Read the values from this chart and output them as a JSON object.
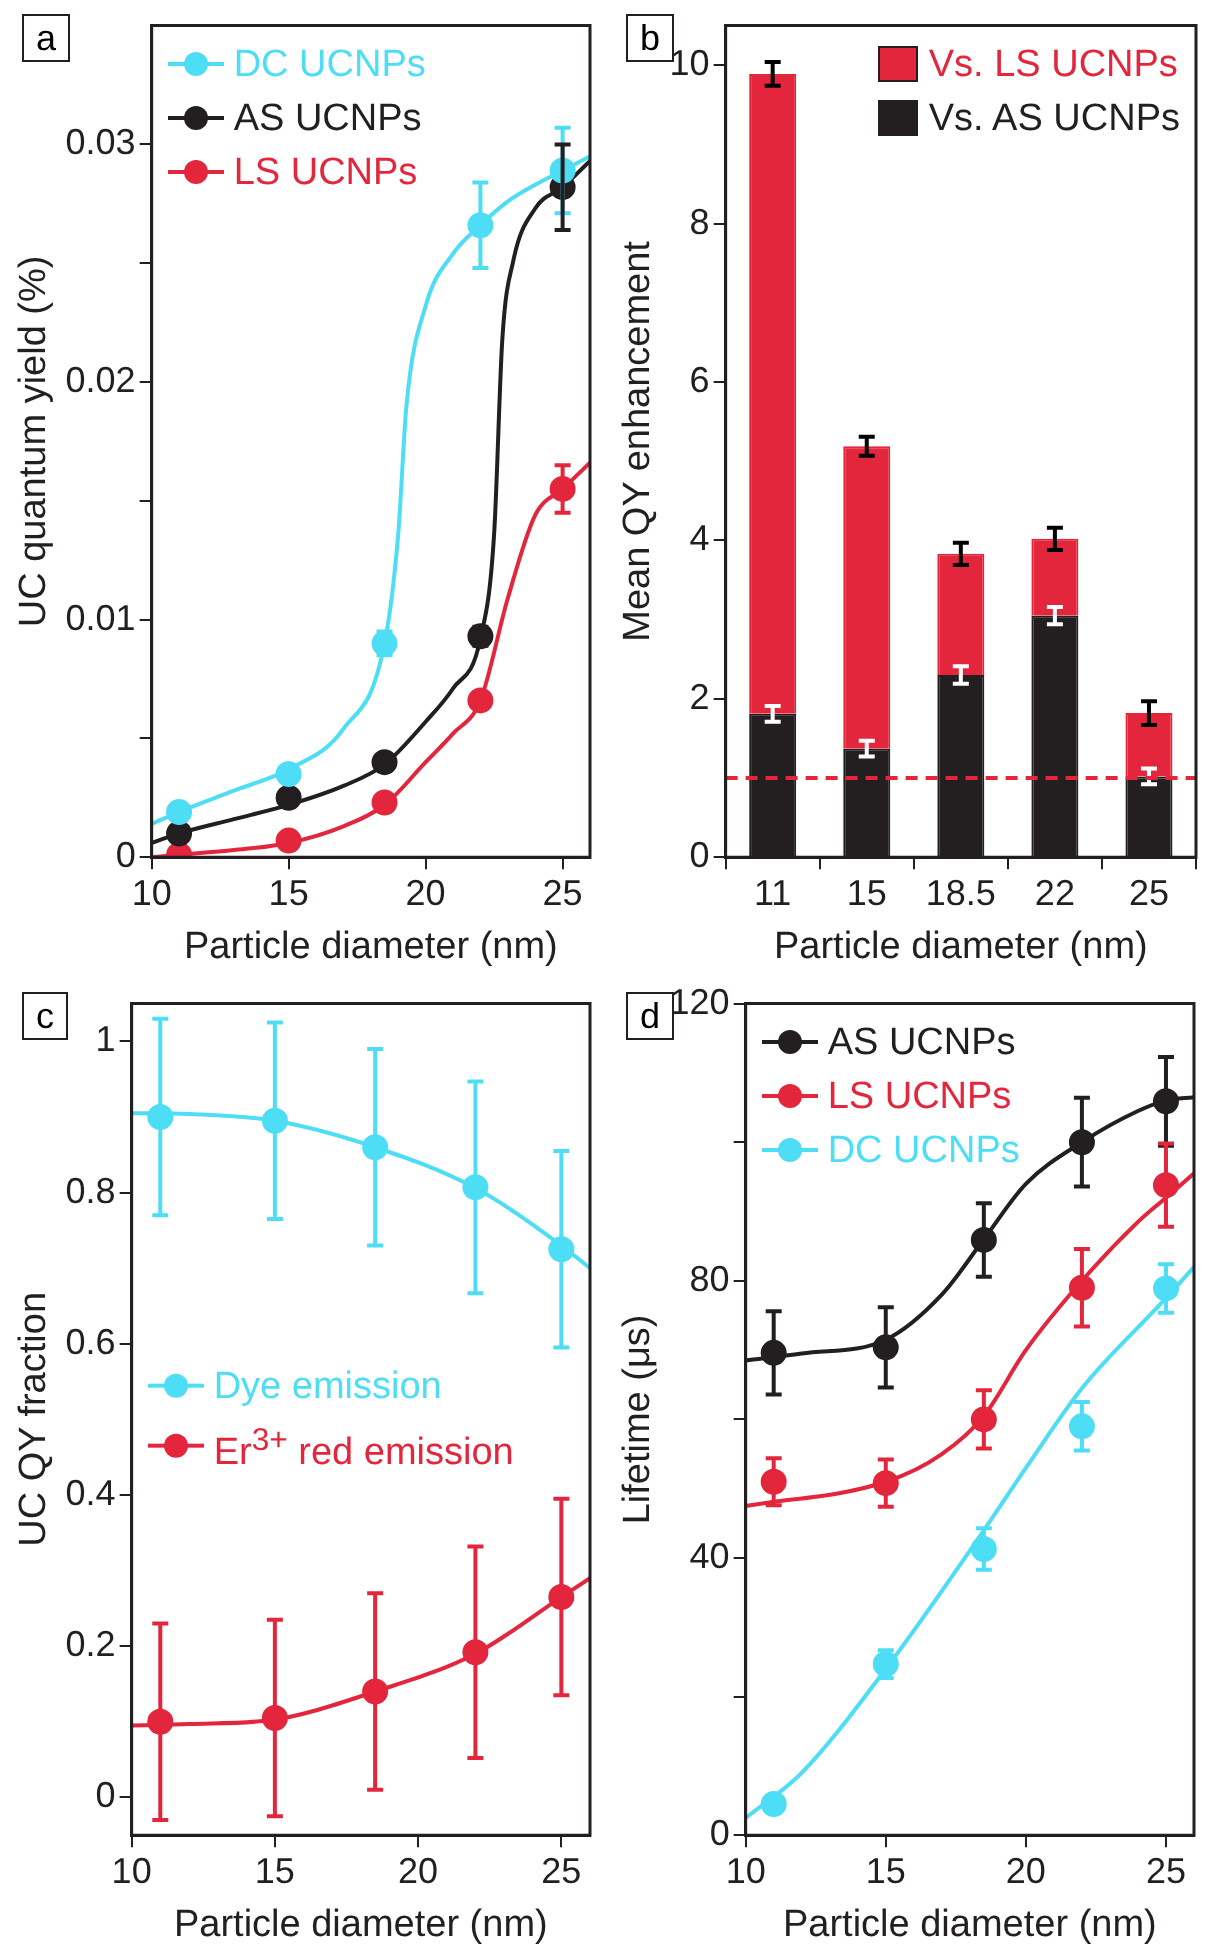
{
  "chart_data": [
    {
      "type": "scatter",
      "xlabel": "Particle diameter (nm)",
      "ylabel": "UC quantum yield (%)",
      "xlim": [
        10,
        26
      ],
      "xticks": [
        10,
        15,
        20,
        25
      ],
      "ylim": [
        0,
        0.035
      ],
      "yticks": [
        0,
        {
          "value": 0.005,
          "label": null
        },
        0.01,
        {
          "value": 0.015,
          "label": null
        },
        0.02,
        {
          "value": 0.025,
          "label": null
        },
        0.03
      ],
      "grid": false,
      "legend": "top left",
      "marker": "circle",
      "annotations": [
        "a"
      ],
      "series": [
        {
          "name": "DC UCNPs",
          "color": "#4dddf5",
          "x": [
            11,
            15,
            18.5,
            22,
            25
          ],
          "values": [
            0.0019,
            0.0035,
            0.009,
            0.0266,
            0.0289
          ],
          "errors": [
            null,
            null,
            0.0005,
            0.0018,
            0.0018
          ]
        },
        {
          "name": "AS UCNPs",
          "color": "#231f20",
          "x": [
            11,
            15,
            18.5,
            22,
            25
          ],
          "values": [
            0.001,
            0.0025,
            0.004,
            0.0093,
            0.0282
          ],
          "errors": [
            null,
            null,
            null,
            0.0004,
            0.0018
          ]
        },
        {
          "name": "LS UCNPs",
          "color": "#e3263c",
          "x": [
            11,
            15,
            18.5,
            22,
            25
          ],
          "values": [
            0.0001,
            0.0007,
            0.0023,
            0.0066,
            0.0155
          ],
          "errors": [
            null,
            null,
            null,
            null,
            0.001
          ]
        },
        {
          "type": "line",
          "marker": "none",
          "line_style": "solid",
          "color": "#4dddf5",
          "x": [
            10,
            11,
            13,
            15,
            17,
            18.5,
            19,
            19.3,
            20,
            21,
            22,
            23,
            24,
            25,
            26
          ],
          "values": [
            0.0014,
            0.0019,
            0.0028,
            0.0037,
            0.0054,
            0.009,
            0.0136,
            0.019,
            0.0232,
            0.0254,
            0.0266,
            0.0276,
            0.0283,
            0.0289,
            0.0295
          ]
        },
        {
          "type": "line",
          "marker": "none",
          "line_style": "solid",
          "color": "#231f20",
          "x": [
            10,
            11,
            13,
            15,
            17,
            18.5,
            20,
            21,
            22,
            22.5,
            22.8,
            23.2,
            24,
            25,
            26
          ],
          "values": [
            0.0006,
            0.001,
            0.0016,
            0.0022,
            0.003,
            0.0039,
            0.0057,
            0.0071,
            0.0092,
            0.0136,
            0.0218,
            0.0251,
            0.0273,
            0.0282,
            0.0293
          ]
        },
        {
          "type": "line",
          "marker": "none",
          "line_style": "solid",
          "color": "#e3263c",
          "x": [
            10,
            11,
            13,
            15,
            17,
            18.5,
            20,
            21,
            22,
            23,
            24,
            25,
            26
          ],
          "values": [
            0.0,
            0.0001,
            0.0003,
            0.0006,
            0.0013,
            0.0022,
            0.004,
            0.0052,
            0.0066,
            0.0109,
            0.0144,
            0.0155,
            0.0166
          ]
        }
      ]
    },
    {
      "type": "bar",
      "stacked": true,
      "xlabel": "Particle diameter (nm)",
      "ylabel": "Mean QY enhancement",
      "categories": [
        "11",
        "15",
        "18.5",
        "22",
        "25"
      ],
      "ylim": [
        0,
        10.5
      ],
      "yticks": [
        0,
        2,
        4,
        6,
        8,
        10
      ],
      "grid": false,
      "legend": "top right",
      "annotations": [
        "b"
      ],
      "ref_lines": [
        {
          "axis": "y",
          "value": 1,
          "color": "#e3263c",
          "line_style": "dashed"
        }
      ],
      "series": [
        {
          "name": "Vs. AS UCNPs",
          "color": "#231f20",
          "values": [
            1.81,
            1.37,
            2.3,
            3.05,
            1.02
          ],
          "errors": [
            0.1,
            0.1,
            0.11,
            0.11,
            0.1
          ]
        },
        {
          "name": "Vs. LS UCNPs",
          "color": "#e3263c",
          "values": [
            8.08,
            3.82,
            1.53,
            0.97,
            0.8
          ],
          "errors": [
            0.15,
            0.12,
            0.14,
            0.14,
            0.15
          ]
        }
      ]
    },
    {
      "type": "scatter",
      "xlabel": "Particle diameter (nm)",
      "ylabel": "UC QY fraction",
      "xlim": [
        10,
        26
      ],
      "xticks": [
        10,
        15,
        20,
        25
      ],
      "ylim": [
        -0.05,
        1.05
      ],
      "yticks": [
        0,
        0.2,
        0.4,
        0.6,
        0.8,
        1
      ],
      "grid": false,
      "legend": "left",
      "marker": "circle",
      "annotations": [
        "c"
      ],
      "series": [
        {
          "name": "Dye emission",
          "color": "#4dddf5",
          "x": [
            11,
            15,
            18.5,
            22,
            25
          ],
          "values": [
            0.9,
            0.895,
            0.86,
            0.807,
            0.725
          ],
          "errors": [
            0.13,
            0.13,
            0.13,
            0.14,
            0.13
          ]
        },
        {
          "name": "Er$^{3+}$ red emission",
          "color": "#e3263c",
          "x": [
            11,
            15,
            18.5,
            22,
            25
          ],
          "values": [
            0.1,
            0.105,
            0.14,
            0.192,
            0.265
          ],
          "errors": [
            0.13,
            0.13,
            0.13,
            0.14,
            0.13
          ]
        },
        {
          "type": "line",
          "marker": "none",
          "line_style": "solid",
          "color": "#4dddf5",
          "x": [
            10,
            12,
            15,
            18.5,
            22,
            25,
            26
          ],
          "values": [
            0.905,
            0.904,
            0.895,
            0.86,
            0.806,
            0.73,
            0.7
          ]
        },
        {
          "type": "line",
          "marker": "none",
          "line_style": "solid",
          "color": "#e3263c",
          "x": [
            10,
            12,
            15,
            18.5,
            22,
            25,
            26
          ],
          "values": [
            0.095,
            0.097,
            0.103,
            0.14,
            0.19,
            0.265,
            0.29
          ]
        }
      ]
    },
    {
      "type": "scatter",
      "xlabel": "Particle diameter (nm)",
      "ylabel": "Lifetime (μs)",
      "xlim": [
        10,
        26
      ],
      "xticks": [
        10,
        15,
        20,
        25
      ],
      "ylim": [
        0,
        120
      ],
      "yticks": [
        0,
        {
          "value": 20,
          "label": null
        },
        40,
        {
          "value": 60,
          "label": null
        },
        80,
        {
          "value": 100,
          "label": null
        },
        120
      ],
      "grid": false,
      "legend": "top left",
      "marker": "circle",
      "annotations": [
        "d"
      ],
      "series": [
        {
          "name": "AS UCNPs",
          "color": "#231f20",
          "x": [
            11,
            15,
            18.5,
            22,
            25
          ],
          "values": [
            69.6,
            70.4,
            85.9,
            100,
            105.9
          ],
          "errors": [
            6,
            5.8,
            5.3,
            6.4,
            6.4
          ]
        },
        {
          "name": "LS UCNPs",
          "color": "#e3263c",
          "x": [
            11,
            15,
            18.5,
            22,
            25
          ],
          "values": [
            51,
            50.8,
            60,
            79,
            93.8
          ],
          "errors": [
            3.4,
            3.4,
            4.2,
            5.6,
            6
          ]
        },
        {
          "name": "DC UCNPs",
          "color": "#4dddf5",
          "x": [
            11,
            15,
            18.5,
            22,
            25
          ],
          "values": [
            4.5,
            24.7,
            41.3,
            59,
            78.9
          ],
          "errors": [
            null,
            2,
            3,
            3.5,
            3.5
          ]
        },
        {
          "type": "line",
          "marker": "none",
          "line_style": "solid",
          "color": "#231f20",
          "x": [
            10,
            12,
            15,
            17,
            18.5,
            20,
            22,
            24,
            25,
            26
          ],
          "values": [
            68.5,
            69.5,
            71.5,
            78,
            86,
            94,
            100,
            104.5,
            106,
            106.5
          ]
        },
        {
          "type": "line",
          "marker": "none",
          "line_style": "solid",
          "color": "#e3263c",
          "x": [
            10,
            15,
            17,
            18.5,
            20,
            22,
            24,
            25,
            26
          ],
          "values": [
            47.5,
            51,
            55,
            60.5,
            70,
            80,
            88.5,
            92,
            95.5
          ]
        },
        {
          "type": "line",
          "marker": "none",
          "line_style": "solid",
          "color": "#4dddf5",
          "x": [
            10,
            12,
            15,
            18.5,
            20,
            22,
            25,
            26
          ],
          "values": [
            2.5,
            9,
            24,
            44,
            53,
            64.5,
            77.5,
            82
          ]
        }
      ]
    }
  ]
}
